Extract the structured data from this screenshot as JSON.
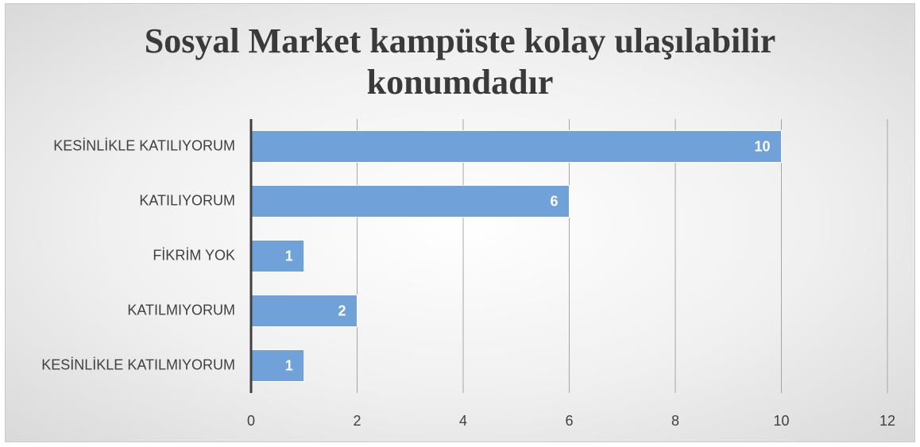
{
  "chart_data": {
    "type": "bar",
    "orientation": "horizontal",
    "title": "Sosyal Market kampüste kolay ulaşılabilir konumdadır",
    "categories": [
      "KESİNLİKLE KATILIYORUM",
      "KATILIYORUM",
      "FİKRİM YOK",
      "KATILMIYORUM",
      "KESİNLİKLE KATILMIYORUM"
    ],
    "values": [
      10,
      6,
      1,
      2,
      1
    ],
    "color": "#70a2d9",
    "xlim": [
      0,
      12
    ],
    "xticks": [
      0,
      2,
      4,
      6,
      8,
      10,
      12
    ],
    "grid": true
  }
}
